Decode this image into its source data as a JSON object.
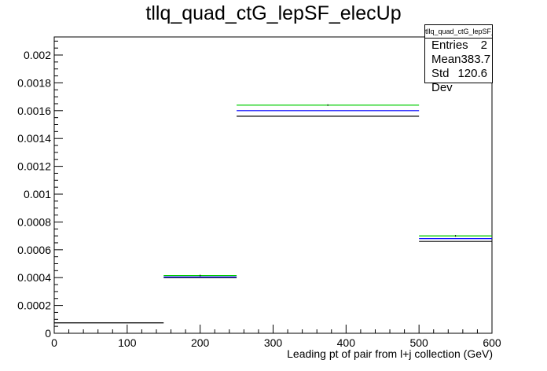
{
  "chart_data": {
    "type": "histogram",
    "title": "tllq_quad_ctG_lepSF_elecUp",
    "xlabel": "Leading pt of pair from l+j collection (GeV)",
    "ylabel": "",
    "xlim": [
      0,
      600
    ],
    "ylim": [
      0,
      0.00213
    ],
    "x_ticks": [
      "0",
      "100",
      "200",
      "300",
      "400",
      "500",
      "600"
    ],
    "y_ticks": [
      "0",
      "0.0002",
      "0.0004",
      "0.0006",
      "0.0008",
      "0.001",
      "0.0012",
      "0.0014",
      "0.0016",
      "0.0018",
      "0.002"
    ],
    "bin_edges": [
      0,
      150,
      250,
      500,
      600
    ],
    "series": [
      {
        "color": "#000000",
        "values": [
          7.5e-05,
          0.0004,
          0.00156,
          0.00066
        ]
      },
      {
        "color": "#0000ff",
        "values": [
          null,
          0.000405,
          0.0016,
          0.00068
        ]
      },
      {
        "color": "#00cc00",
        "values": [
          null,
          0.000415,
          0.00164,
          0.0007
        ]
      }
    ],
    "markers": [
      {
        "x": 200,
        "y": 0.000415
      },
      {
        "x": 375,
        "y": 0.00164
      },
      {
        "x": 550,
        "y": 0.0007
      }
    ],
    "grid": false
  },
  "stats": {
    "title": "tllq_quad_ctG_lepSF_elecUp",
    "rows": [
      {
        "label": "Entries",
        "value": "2"
      },
      {
        "label": "Mean",
        "value": "383.7"
      },
      {
        "label": "Std Dev",
        "value": "120.6"
      }
    ]
  }
}
